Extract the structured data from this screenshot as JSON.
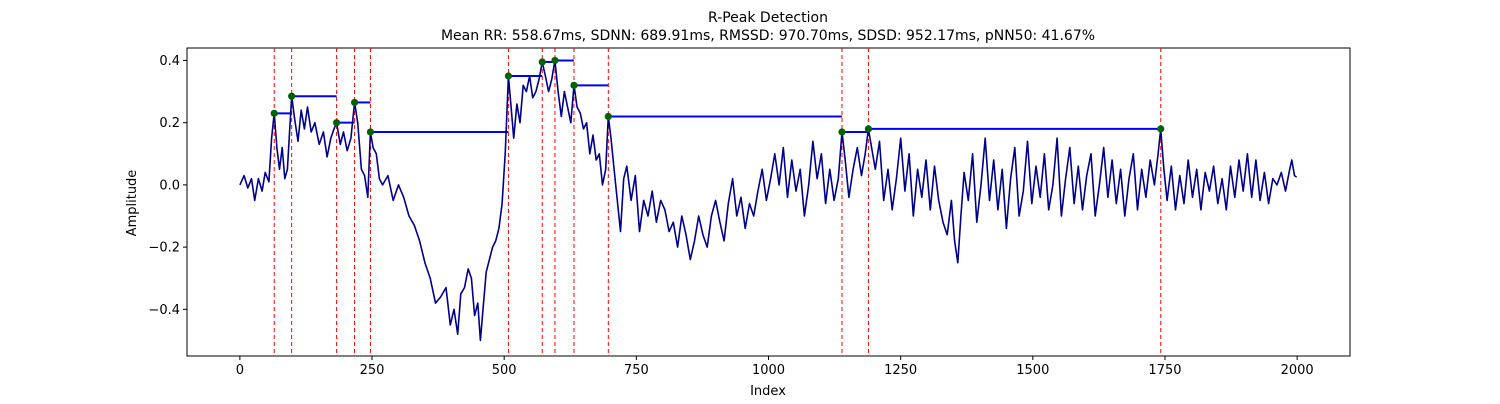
{
  "chart_data": {
    "type": "line",
    "title": "R-Peak Detection",
    "subtitle": "Mean RR: 558.67ms, SDNN: 689.91ms, RMSSD: 970.70ms, SDSD: 952.17ms, pNN50: 41.67%",
    "xlabel": "Index",
    "ylabel": "Amplitude",
    "xlim": [
      -100,
      2100
    ],
    "ylim": [
      -0.55,
      0.44
    ],
    "x_ticks": [
      0,
      250,
      500,
      750,
      1000,
      1250,
      1500,
      1750,
      2000
    ],
    "y_ticks": [
      -0.4,
      -0.2,
      0.0,
      0.2,
      0.4
    ],
    "x_tick_labels": [
      "0",
      "250",
      "500",
      "750",
      "1000",
      "1250",
      "1500",
      "1750",
      "2000"
    ],
    "y_tick_labels": [
      "−0.4",
      "−0.2",
      "0.0",
      "0.2",
      "0.4"
    ],
    "grid": false,
    "signal": {
      "color": "#00008b",
      "points": [
        [
          0,
          0.0
        ],
        [
          8,
          0.03
        ],
        [
          15,
          -0.01
        ],
        [
          22,
          0.02
        ],
        [
          28,
          -0.05
        ],
        [
          35,
          0.02
        ],
        [
          42,
          -0.02
        ],
        [
          48,
          0.04
        ],
        [
          55,
          0.01
        ],
        [
          60,
          0.15
        ],
        [
          65,
          0.23
        ],
        [
          70,
          0.12
        ],
        [
          75,
          0.05
        ],
        [
          80,
          0.12
        ],
        [
          85,
          0.02
        ],
        [
          90,
          0.05
        ],
        [
          95,
          0.2
        ],
        [
          98,
          0.285
        ],
        [
          103,
          0.22
        ],
        [
          110,
          0.14
        ],
        [
          116,
          0.24
        ],
        [
          122,
          0.18
        ],
        [
          128,
          0.25
        ],
        [
          135,
          0.17
        ],
        [
          142,
          0.2
        ],
        [
          150,
          0.13
        ],
        [
          158,
          0.17
        ],
        [
          165,
          0.09
        ],
        [
          172,
          0.15
        ],
        [
          178,
          0.18
        ],
        [
          183,
          0.2
        ],
        [
          190,
          0.13
        ],
        [
          196,
          0.17
        ],
        [
          203,
          0.11
        ],
        [
          210,
          0.15
        ],
        [
          217,
          0.265
        ],
        [
          223,
          0.2
        ],
        [
          230,
          0.05
        ],
        [
          236,
          0.03
        ],
        [
          242,
          -0.04
        ],
        [
          247,
          0.17
        ],
        [
          252,
          0.12
        ],
        [
          258,
          0.1
        ],
        [
          264,
          0.02
        ],
        [
          270,
          0.0
        ],
        [
          280,
          0.03
        ],
        [
          290,
          -0.05
        ],
        [
          300,
          0.0
        ],
        [
          310,
          -0.04
        ],
        [
          320,
          -0.1
        ],
        [
          330,
          -0.13
        ],
        [
          340,
          -0.18
        ],
        [
          350,
          -0.25
        ],
        [
          360,
          -0.3
        ],
        [
          370,
          -0.38
        ],
        [
          380,
          -0.36
        ],
        [
          390,
          -0.33
        ],
        [
          398,
          -0.45
        ],
        [
          405,
          -0.4
        ],
        [
          412,
          -0.48
        ],
        [
          418,
          -0.35
        ],
        [
          425,
          -0.33
        ],
        [
          432,
          -0.27
        ],
        [
          438,
          -0.3
        ],
        [
          444,
          -0.42
        ],
        [
          450,
          -0.38
        ],
        [
          455,
          -0.5
        ],
        [
          460,
          -0.4
        ],
        [
          466,
          -0.28
        ],
        [
          472,
          -0.24
        ],
        [
          478,
          -0.2
        ],
        [
          484,
          -0.18
        ],
        [
          490,
          -0.14
        ],
        [
          496,
          -0.06
        ],
        [
          502,
          0.1
        ],
        [
          508,
          0.35
        ],
        [
          513,
          0.25
        ],
        [
          518,
          0.15
        ],
        [
          524,
          0.26
        ],
        [
          530,
          0.2
        ],
        [
          536,
          0.32
        ],
        [
          542,
          0.3
        ],
        [
          548,
          0.35
        ],
        [
          554,
          0.28
        ],
        [
          560,
          0.3
        ],
        [
          566,
          0.34
        ],
        [
          572,
          0.395
        ],
        [
          578,
          0.35
        ],
        [
          584,
          0.3
        ],
        [
          590,
          0.34
        ],
        [
          596,
          0.4
        ],
        [
          602,
          0.3
        ],
        [
          608,
          0.22
        ],
        [
          614,
          0.3
        ],
        [
          620,
          0.25
        ],
        [
          626,
          0.2
        ],
        [
          632,
          0.32
        ],
        [
          638,
          0.25
        ],
        [
          644,
          0.23
        ],
        [
          650,
          0.18
        ],
        [
          656,
          0.2
        ],
        [
          662,
          0.1
        ],
        [
          668,
          0.16
        ],
        [
          674,
          0.08
        ],
        [
          680,
          0.1
        ],
        [
          686,
          0.0
        ],
        [
          692,
          0.05
        ],
        [
          697,
          0.22
        ],
        [
          702,
          0.15
        ],
        [
          708,
          0.05
        ],
        [
          714,
          -0.05
        ],
        [
          720,
          -0.15
        ],
        [
          726,
          0.02
        ],
        [
          732,
          0.06
        ],
        [
          740,
          -0.05
        ],
        [
          748,
          0.03
        ],
        [
          756,
          -0.15
        ],
        [
          764,
          -0.05
        ],
        [
          772,
          -0.1
        ],
        [
          780,
          -0.02
        ],
        [
          788,
          -0.12
        ],
        [
          796,
          -0.05
        ],
        [
          804,
          -0.08
        ],
        [
          812,
          -0.15
        ],
        [
          820,
          -0.12
        ],
        [
          828,
          -0.2
        ],
        [
          836,
          -0.1
        ],
        [
          844,
          -0.16
        ],
        [
          852,
          -0.24
        ],
        [
          860,
          -0.18
        ],
        [
          868,
          -0.1
        ],
        [
          876,
          -0.16
        ],
        [
          884,
          -0.2
        ],
        [
          892,
          -0.1
        ],
        [
          900,
          -0.05
        ],
        [
          908,
          -0.12
        ],
        [
          916,
          -0.18
        ],
        [
          924,
          -0.06
        ],
        [
          932,
          0.02
        ],
        [
          940,
          -0.1
        ],
        [
          948,
          -0.04
        ],
        [
          956,
          -0.14
        ],
        [
          964,
          -0.06
        ],
        [
          972,
          -0.1
        ],
        [
          980,
          -0.02
        ],
        [
          988,
          0.05
        ],
        [
          996,
          -0.05
        ],
        [
          1004,
          0.02
        ],
        [
          1012,
          0.1
        ],
        [
          1020,
          0.0
        ],
        [
          1028,
          0.12
        ],
        [
          1036,
          -0.04
        ],
        [
          1044,
          0.08
        ],
        [
          1052,
          -0.02
        ],
        [
          1060,
          0.05
        ],
        [
          1068,
          -0.1
        ],
        [
          1076,
          0.0
        ],
        [
          1084,
          0.14
        ],
        [
          1092,
          0.02
        ],
        [
          1100,
          0.1
        ],
        [
          1108,
          -0.06
        ],
        [
          1116,
          0.05
        ],
        [
          1124,
          -0.05
        ],
        [
          1132,
          0.02
        ],
        [
          1139,
          0.17
        ],
        [
          1145,
          0.08
        ],
        [
          1152,
          -0.04
        ],
        [
          1160,
          0.05
        ],
        [
          1168,
          0.12
        ],
        [
          1176,
          0.03
        ],
        [
          1183,
          0.1
        ],
        [
          1189,
          0.18
        ],
        [
          1195,
          0.12
        ],
        [
          1202,
          0.05
        ],
        [
          1210,
          0.14
        ],
        [
          1218,
          -0.05
        ],
        [
          1226,
          0.05
        ],
        [
          1234,
          -0.08
        ],
        [
          1242,
          0.02
        ],
        [
          1250,
          0.15
        ],
        [
          1258,
          -0.02
        ],
        [
          1266,
          0.1
        ],
        [
          1274,
          -0.1
        ],
        [
          1282,
          0.05
        ],
        [
          1290,
          -0.04
        ],
        [
          1298,
          0.08
        ],
        [
          1306,
          -0.08
        ],
        [
          1314,
          0.06
        ],
        [
          1322,
          -0.05
        ],
        [
          1330,
          -0.12
        ],
        [
          1338,
          -0.16
        ],
        [
          1346,
          -0.05
        ],
        [
          1352,
          -0.18
        ],
        [
          1358,
          -0.25
        ],
        [
          1364,
          -0.1
        ],
        [
          1370,
          0.04
        ],
        [
          1378,
          -0.05
        ],
        [
          1386,
          0.1
        ],
        [
          1394,
          -0.12
        ],
        [
          1402,
          0.0
        ],
        [
          1410,
          0.15
        ],
        [
          1418,
          -0.05
        ],
        [
          1426,
          0.08
        ],
        [
          1434,
          -0.08
        ],
        [
          1442,
          0.05
        ],
        [
          1450,
          -0.14
        ],
        [
          1458,
          0.02
        ],
        [
          1466,
          0.12
        ],
        [
          1474,
          -0.1
        ],
        [
          1482,
          -0.02
        ],
        [
          1490,
          0.14
        ],
        [
          1498,
          -0.06
        ],
        [
          1506,
          0.06
        ],
        [
          1514,
          -0.04
        ],
        [
          1522,
          0.1
        ],
        [
          1530,
          -0.08
        ],
        [
          1538,
          0.0
        ],
        [
          1546,
          0.15
        ],
        [
          1554,
          -0.1
        ],
        [
          1562,
          0.02
        ],
        [
          1570,
          0.12
        ],
        [
          1578,
          -0.06
        ],
        [
          1586,
          0.06
        ],
        [
          1594,
          -0.08
        ],
        [
          1602,
          0.03
        ],
        [
          1610,
          0.1
        ],
        [
          1618,
          -0.1
        ],
        [
          1626,
          0.0
        ],
        [
          1634,
          0.12
        ],
        [
          1642,
          -0.04
        ],
        [
          1650,
          0.08
        ],
        [
          1658,
          -0.06
        ],
        [
          1666,
          0.05
        ],
        [
          1674,
          -0.1
        ],
        [
          1682,
          0.02
        ],
        [
          1690,
          0.1
        ],
        [
          1698,
          -0.08
        ],
        [
          1706,
          0.05
        ],
        [
          1714,
          -0.04
        ],
        [
          1722,
          0.08
        ],
        [
          1730,
          0.0
        ],
        [
          1737,
          0.1
        ],
        [
          1742,
          0.18
        ],
        [
          1748,
          0.05
        ],
        [
          1754,
          -0.05
        ],
        [
          1762,
          0.06
        ],
        [
          1770,
          -0.08
        ],
        [
          1778,
          0.03
        ],
        [
          1786,
          -0.06
        ],
        [
          1794,
          0.08
        ],
        [
          1802,
          -0.04
        ],
        [
          1810,
          0.05
        ],
        [
          1818,
          -0.08
        ],
        [
          1826,
          0.04
        ],
        [
          1834,
          -0.02
        ],
        [
          1842,
          0.06
        ],
        [
          1850,
          -0.06
        ],
        [
          1858,
          0.02
        ],
        [
          1866,
          -0.08
        ],
        [
          1874,
          0.06
        ],
        [
          1882,
          -0.04
        ],
        [
          1890,
          0.08
        ],
        [
          1898,
          -0.02
        ],
        [
          1906,
          0.1
        ],
        [
          1914,
          -0.04
        ],
        [
          1922,
          0.08
        ],
        [
          1930,
          -0.05
        ],
        [
          1938,
          0.04
        ],
        [
          1946,
          -0.06
        ],
        [
          1954,
          0.02
        ],
        [
          1962,
          0.0
        ],
        [
          1970,
          0.04
        ],
        [
          1978,
          -0.02
        ],
        [
          1986,
          0.05
        ],
        [
          1990,
          0.08
        ],
        [
          1995,
          0.03
        ],
        [
          1999,
          0.025
        ]
      ]
    },
    "peaks": {
      "marker_color": "#006400",
      "line_color": "#ff0000",
      "points": [
        [
          65,
          0.23
        ],
        [
          98,
          0.285
        ],
        [
          183,
          0.2
        ],
        [
          217,
          0.265
        ],
        [
          247,
          0.17
        ],
        [
          508,
          0.35
        ],
        [
          572,
          0.395
        ],
        [
          596,
          0.4
        ],
        [
          632,
          0.32
        ],
        [
          697,
          0.22
        ],
        [
          1139,
          0.17
        ],
        [
          1189,
          0.18
        ],
        [
          1742,
          0.18
        ]
      ]
    },
    "rr_intervals": {
      "color": "#0000ff",
      "segments": [
        [
          65,
          98,
          0.23
        ],
        [
          98,
          183,
          0.285
        ],
        [
          183,
          217,
          0.2
        ],
        [
          217,
          247,
          0.265
        ],
        [
          247,
          508,
          0.17
        ],
        [
          508,
          572,
          0.35
        ],
        [
          572,
          596,
          0.395
        ],
        [
          596,
          632,
          0.4
        ],
        [
          632,
          697,
          0.32
        ],
        [
          697,
          1139,
          0.22
        ],
        [
          1139,
          1189,
          0.17
        ],
        [
          1189,
          1742,
          0.18
        ]
      ]
    }
  }
}
